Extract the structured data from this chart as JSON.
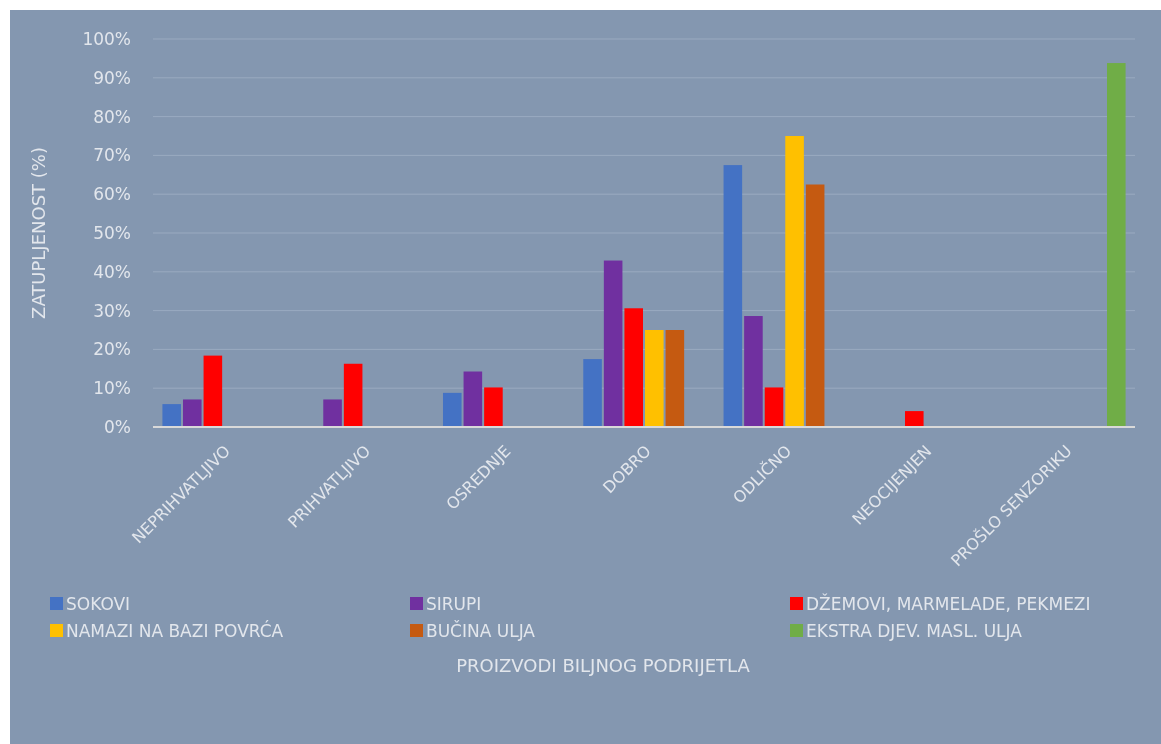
{
  "chart_data": {
    "type": "bar",
    "xlabel": "PROIZVODI BILJNOG PODRIJETLA",
    "ylabel": "ZATUPLJENOST (%)",
    "categories": [
      "NEPRIHVATLJIVO",
      "PRIHVATLJIVO",
      "OSREDNJE",
      "DOBRO",
      "ODLIČNO",
      "NEOCIJENJEN",
      "PROŠLO SENZORIKU"
    ],
    "series": [
      {
        "name": "SOKOVI",
        "color": "#4472c4",
        "values": [
          5.9,
          0,
          8.8,
          17.5,
          67.5,
          0,
          0
        ]
      },
      {
        "name": "SIRUPI",
        "color": "#7030a0",
        "values": [
          7.1,
          7.1,
          14.3,
          42.9,
          28.6,
          0,
          0
        ]
      },
      {
        "name": "DŽEMOVI, MARMELADE, PEKMEZI",
        "color": "#ff0000",
        "values": [
          18.4,
          16.3,
          10.2,
          30.6,
          10.2,
          4.1,
          0
        ]
      },
      {
        "name": "NAMAZI NA BAZI POVRĆA",
        "color": "#ffc000",
        "values": [
          0,
          0,
          0,
          25,
          75,
          0,
          0
        ]
      },
      {
        "name": "BUČINA ULJA",
        "color": "#c55a11",
        "values": [
          0,
          0,
          0,
          25,
          62.5,
          0,
          0
        ]
      },
      {
        "name": "EKSTRA DJEV. MASL. ULJA",
        "color": "#70ad47",
        "values": [
          0,
          0,
          0,
          0,
          0,
          0,
          93.8
        ]
      }
    ],
    "ylim": [
      0,
      100
    ],
    "yticks": [
      {
        "value": 0,
        "label": "0%"
      },
      {
        "value": 10,
        "label": "10%"
      },
      {
        "value": 20,
        "label": "20%"
      },
      {
        "value": 30,
        "label": "30%"
      },
      {
        "value": 40,
        "label": "40%"
      },
      {
        "value": 50,
        "label": "50%"
      },
      {
        "value": 60,
        "label": "60%"
      },
      {
        "value": 70,
        "label": "70%"
      },
      {
        "value": 80,
        "label": "80%"
      },
      {
        "value": 90,
        "label": "90%"
      },
      {
        "value": 100,
        "label": "100%"
      }
    ],
    "grid": "y",
    "legend": "bottom"
  }
}
